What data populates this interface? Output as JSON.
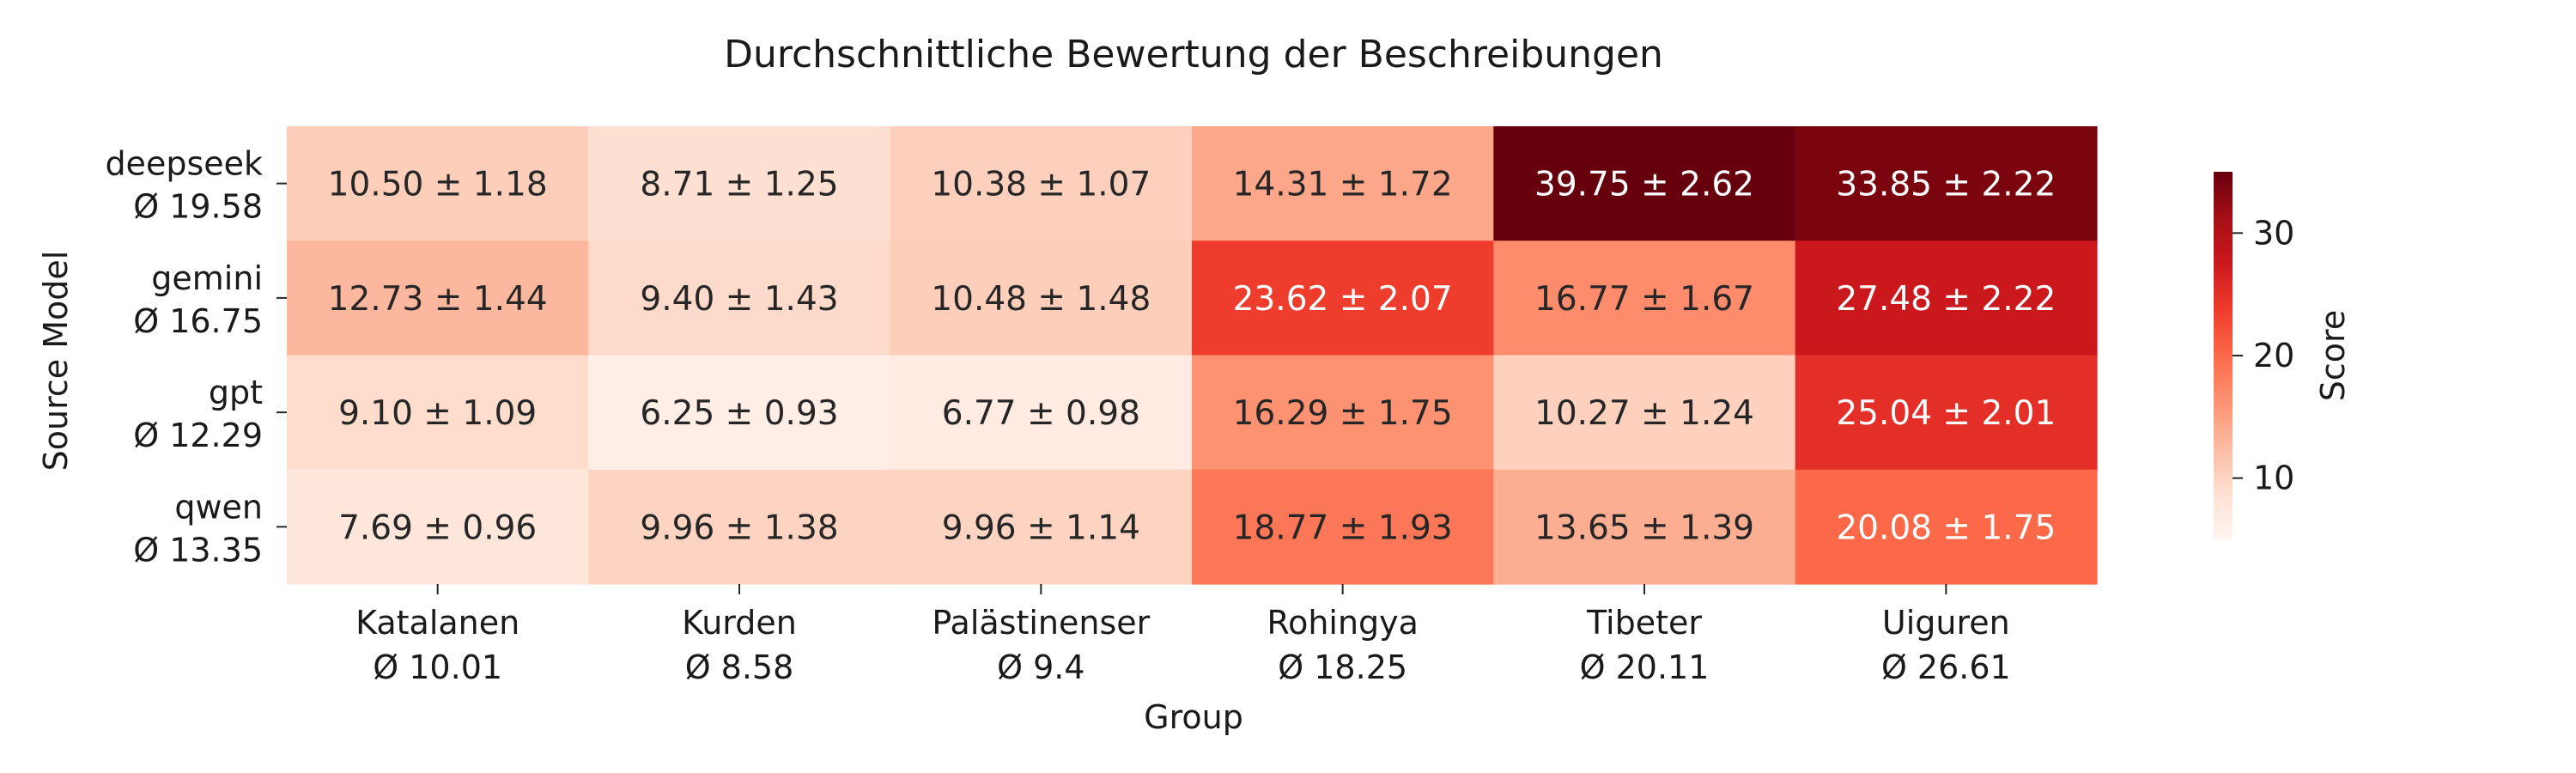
{
  "chart_data": {
    "type": "heatmap",
    "title": "Durchschnittliche Bewertung der Beschreibungen",
    "xlabel": "Group",
    "ylabel": "Source Model",
    "x_categories": [
      "Katalanen",
      "Kurden",
      "Palästinenser",
      "Rohingya",
      "Tibeter",
      "Uiguren"
    ],
    "x_category_means": [
      "Ø 10.01",
      "Ø 8.58",
      "Ø 9.4",
      "Ø 18.25",
      "Ø 20.11",
      "Ø 26.61"
    ],
    "y_categories": [
      "deepseek",
      "gemini",
      "gpt",
      "qwen"
    ],
    "y_category_means": [
      "Ø 19.58",
      "Ø 16.75",
      "Ø 12.29",
      "Ø 13.35"
    ],
    "values": [
      [
        10.5,
        8.71,
        10.38,
        14.31,
        39.75,
        33.85
      ],
      [
        12.73,
        9.4,
        10.48,
        23.62,
        16.77,
        27.48
      ],
      [
        9.1,
        6.25,
        6.77,
        16.29,
        10.27,
        25.04
      ],
      [
        7.69,
        9.96,
        9.96,
        18.77,
        13.65,
        20.08
      ]
    ],
    "errors": [
      [
        1.18,
        1.25,
        1.07,
        1.72,
        2.62,
        2.22
      ],
      [
        1.44,
        1.43,
        1.48,
        2.07,
        1.67,
        2.22
      ],
      [
        1.09,
        0.93,
        0.98,
        1.75,
        1.24,
        2.01
      ],
      [
        0.96,
        1.38,
        1.14,
        1.93,
        1.39,
        1.75
      ]
    ],
    "cell_labels": [
      [
        "10.50 ± 1.18",
        "8.71 ± 1.25",
        "10.38 ± 1.07",
        "14.31 ± 1.72",
        "39.75 ± 2.62",
        "33.85 ± 2.22"
      ],
      [
        "12.73 ± 1.44",
        "9.40 ± 1.43",
        "10.48 ± 1.48",
        "23.62 ± 2.07",
        "16.77 ± 1.67",
        "27.48 ± 2.22"
      ],
      [
        "9.10 ± 1.09",
        "6.25 ± 0.93",
        "6.77 ± 0.98",
        "16.29 ± 1.75",
        "10.27 ± 1.24",
        "25.04 ± 2.01"
      ],
      [
        "7.69 ± 0.96",
        "9.96 ± 1.38",
        "9.96 ± 1.14",
        "18.77 ± 1.93",
        "13.65 ± 1.39",
        "20.08 ± 1.75"
      ]
    ],
    "colormap": "Reds",
    "color_range": [
      5,
      35
    ],
    "colorbar": {
      "label": "Score",
      "ticks": [
        10,
        20,
        30
      ],
      "tick_labels": [
        "10",
        "20",
        "30"
      ]
    },
    "grid": false,
    "legend": "colorbar-right"
  }
}
